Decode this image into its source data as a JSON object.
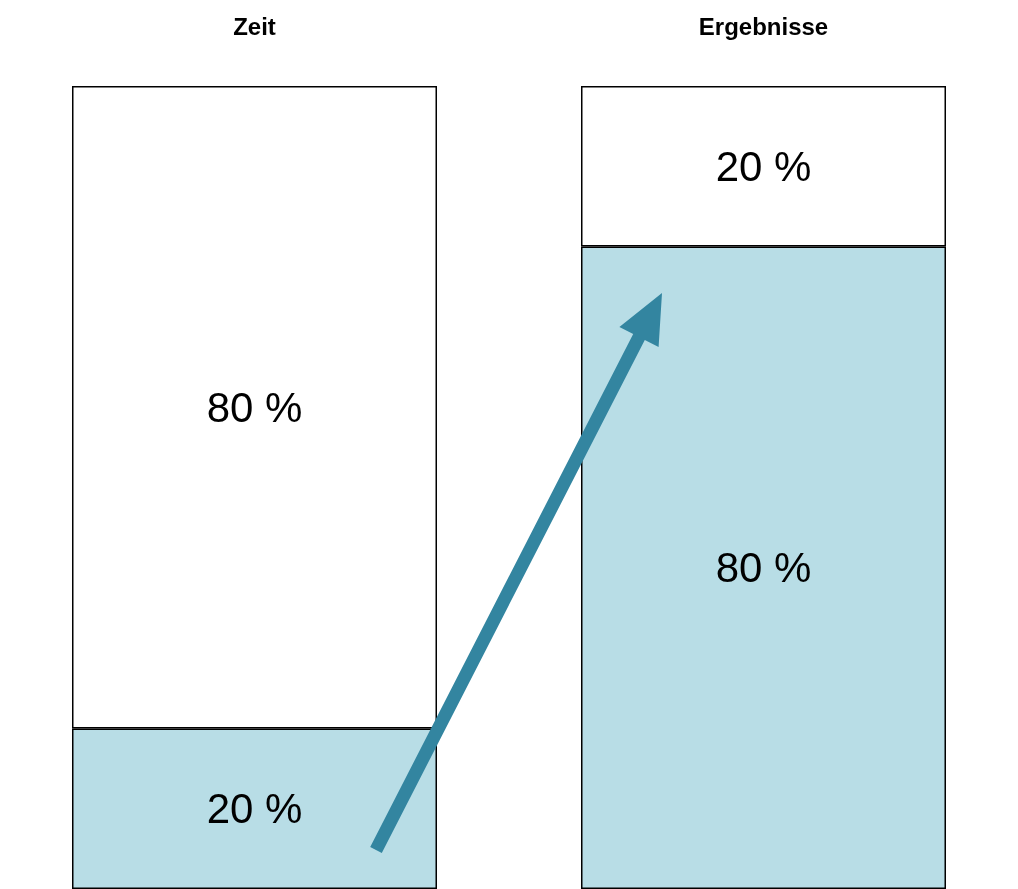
{
  "chart_data": {
    "type": "bar",
    "stacked": true,
    "categories": [
      "Zeit",
      "Ergebnisse"
    ],
    "series": [
      {
        "color": "#b8dde6",
        "values": [
          20,
          80
        ],
        "value_labels": [
          "20 %",
          "80 %"
        ]
      },
      {
        "color": "#ffffff",
        "values": [
          80,
          20
        ],
        "value_labels": [
          "80 %",
          "20 %"
        ]
      }
    ]
  }
}
